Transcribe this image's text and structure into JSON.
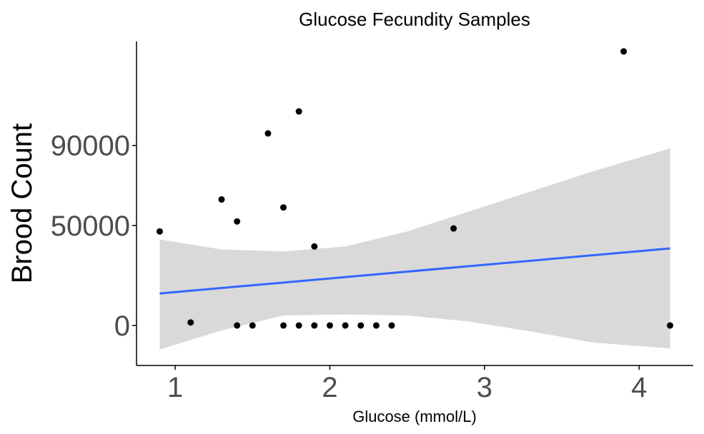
{
  "chart_data": {
    "type": "scatter",
    "title": "Glucose Fecundity Samples",
    "xlabel": "Glucose (mmol/L)",
    "ylabel": "Brood Count",
    "xlim": [
      0.75,
      4.35
    ],
    "ylim": [
      -20000,
      142000
    ],
    "x_ticks": [
      1,
      2,
      3,
      4
    ],
    "y_ticks": [
      0,
      50000,
      90000
    ],
    "x_tick_labels": [
      "1",
      "2",
      "3",
      "4"
    ],
    "y_tick_labels": [
      "0",
      "50000",
      "90000"
    ],
    "grid": false,
    "legend": "none",
    "points": [
      {
        "x": 0.9,
        "y": 47000
      },
      {
        "x": 1.1,
        "y": 1500
      },
      {
        "x": 1.3,
        "y": 63000
      },
      {
        "x": 1.4,
        "y": 52000
      },
      {
        "x": 1.4,
        "y": 0
      },
      {
        "x": 1.5,
        "y": 0
      },
      {
        "x": 1.6,
        "y": 96000
      },
      {
        "x": 1.7,
        "y": 59000
      },
      {
        "x": 1.7,
        "y": 0
      },
      {
        "x": 1.8,
        "y": 107000
      },
      {
        "x": 1.8,
        "y": 0
      },
      {
        "x": 1.9,
        "y": 39500
      },
      {
        "x": 1.9,
        "y": 0
      },
      {
        "x": 2.0,
        "y": 0
      },
      {
        "x": 2.1,
        "y": 0
      },
      {
        "x": 2.2,
        "y": 0
      },
      {
        "x": 2.3,
        "y": 0
      },
      {
        "x": 2.4,
        "y": 0
      },
      {
        "x": 2.8,
        "y": 48500
      },
      {
        "x": 3.9,
        "y": 137000
      },
      {
        "x": 4.2,
        "y": 0
      }
    ],
    "fit_line": {
      "x": [
        0.9,
        4.2
      ],
      "y": [
        16000,
        38500
      ]
    },
    "confidence_band": {
      "x": [
        0.9,
        1.3,
        1.7,
        2.1,
        2.5,
        2.9,
        3.3,
        3.7,
        4.2
      ],
      "upper": [
        43000,
        38000,
        37000,
        39500,
        47000,
        57000,
        67000,
        77000,
        88500
      ],
      "lower": [
        -12000,
        -2500,
        5000,
        5500,
        5000,
        2000,
        -3000,
        -8500,
        -11500
      ]
    },
    "colors": {
      "points": "#000000",
      "fit_line": "#3366ff",
      "band": "#d9d9d9",
      "axis": "#000000",
      "tick_text": "#4d4d4d"
    }
  }
}
